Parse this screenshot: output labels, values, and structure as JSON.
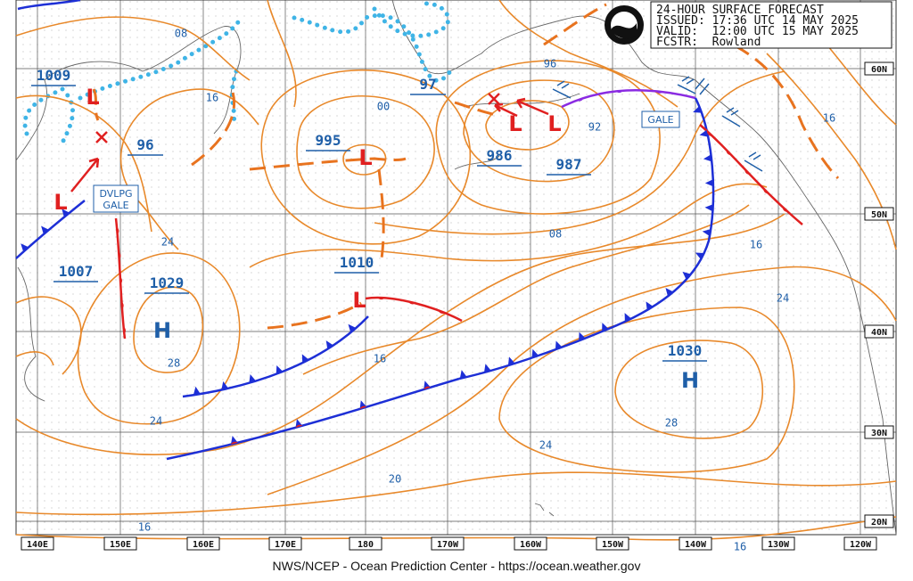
{
  "header": {
    "lines": [
      "24-HOUR SURFACE FORECAST",
      "ISSUED: 17:36 UTC 14 MAY 2025",
      "VALID:  12:00 UTC 15 MAY 2025",
      "FCSTR:  Rowland"
    ]
  },
  "footer": "NWS/NCEP - Ocean Prediction Center - https://ocean.weather.gov",
  "longitude_labels": [
    "140E",
    "150E",
    "160E",
    "170E",
    "180",
    "170W",
    "160W",
    "150W",
    "140W",
    "130W",
    "120W"
  ],
  "latitude_labels": [
    "60N",
    "50N",
    "40N",
    "30N",
    "20N"
  ],
  "pressure_labels": [
    "1009",
    "96",
    "995",
    "97",
    "986",
    "987",
    "1010",
    "1007",
    "1029",
    "1030"
  ],
  "isobar_labels": [
    "08",
    "16",
    "00",
    "96",
    "92",
    "16",
    "08",
    "16",
    "24",
    "24",
    "28",
    "16",
    "28",
    "24",
    "24",
    "20",
    "16",
    "16"
  ],
  "highs": [
    "H",
    "H"
  ],
  "lows": [
    "L",
    "L",
    "L",
    "L",
    "L",
    "L"
  ],
  "warnings": [
    "GALE",
    "DVLPG",
    "GALE"
  ]
}
